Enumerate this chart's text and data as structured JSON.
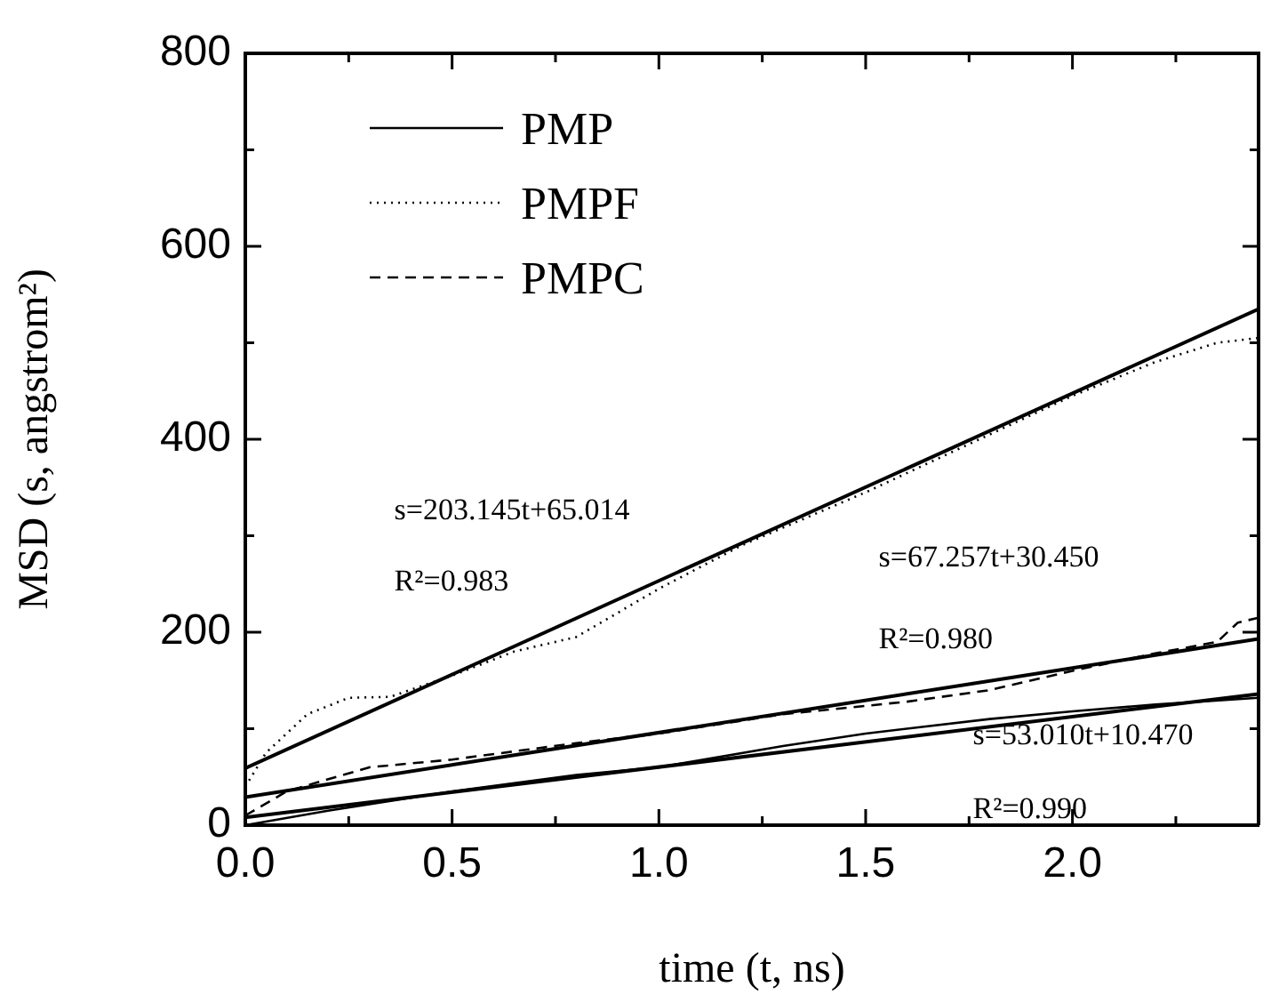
{
  "chart_data": {
    "type": "line",
    "xlabel": "time (t, ns)",
    "ylabel": "MSD (s, angstrom²)",
    "xlim": [
      0,
      2.45
    ],
    "xticks": [
      {
        "value": 0,
        "label": "0.0"
      },
      {
        "value": 0.25,
        "label": null
      },
      0.5,
      {
        "value": 0.75,
        "label": null
      },
      {
        "value": 1,
        "label": "1.0"
      },
      {
        "value": 1.25,
        "label": null
      },
      1.5,
      {
        "value": 1.75,
        "label": null
      },
      {
        "value": 2,
        "label": "2.0"
      },
      {
        "value": 2.25,
        "label": null
      }
    ],
    "ylim": [
      0,
      800
    ],
    "yticks": [
      0,
      {
        "value": 100,
        "label": null
      },
      200,
      {
        "value": 300,
        "label": null
      },
      400,
      {
        "value": 500,
        "label": null
      },
      600,
      {
        "value": 700,
        "label": null
      },
      800
    ],
    "grid": false,
    "legend": "top left",
    "marker": "none",
    "series": [
      {
        "name": "PMP",
        "color": "#000000",
        "line_style": "solid",
        "x": [
          0,
          0.2,
          0.5,
          0.8,
          1.0,
          1.3,
          1.5,
          1.8,
          2.0,
          2.2,
          2.45
        ],
        "values": [
          0,
          15,
          35,
          52,
          60,
          82,
          95,
          110,
          118,
          125,
          132
        ]
      },
      {
        "name": "PMPF",
        "color": "#000000",
        "line_style": "dotted",
        "x": [
          0,
          0.05,
          0.15,
          0.25,
          0.35,
          0.5,
          0.65,
          0.8,
          1.0,
          1.2,
          1.5,
          1.8,
          2.0,
          2.2,
          2.35,
          2.45
        ],
        "values": [
          40,
          75,
          115,
          132,
          133,
          155,
          180,
          195,
          245,
          290,
          345,
          405,
          445,
          480,
          500,
          505
        ]
      },
      {
        "name": "PMPC",
        "color": "#000000",
        "line_style": "dashed",
        "x": [
          0,
          0.1,
          0.3,
          0.5,
          0.8,
          1.0,
          1.3,
          1.6,
          1.8,
          2.0,
          2.2,
          2.35,
          2.4,
          2.45
        ],
        "values": [
          10,
          35,
          60,
          68,
          85,
          95,
          115,
          128,
          140,
          160,
          178,
          190,
          210,
          215
        ]
      },
      {
        "type": "line",
        "color": "#000000",
        "line_style": "solid",
        "x": [
          0,
          2.45
        ],
        "values": [
          59,
          535
        ]
      },
      {
        "type": "line",
        "color": "#000000",
        "line_style": "solid",
        "x": [
          0,
          2.45
        ],
        "values": [
          29,
          193
        ]
      },
      {
        "type": "line",
        "color": "#000000",
        "line_style": "solid",
        "x": [
          0,
          2.45
        ],
        "values": [
          8,
          136
        ]
      }
    ],
    "annotations": [
      "s=203.145t+65.014",
      "R²=0.983",
      "s=67.257t+30.450",
      "R²=0.980",
      "s=53.010t+10.470",
      "R²=0.990"
    ]
  }
}
